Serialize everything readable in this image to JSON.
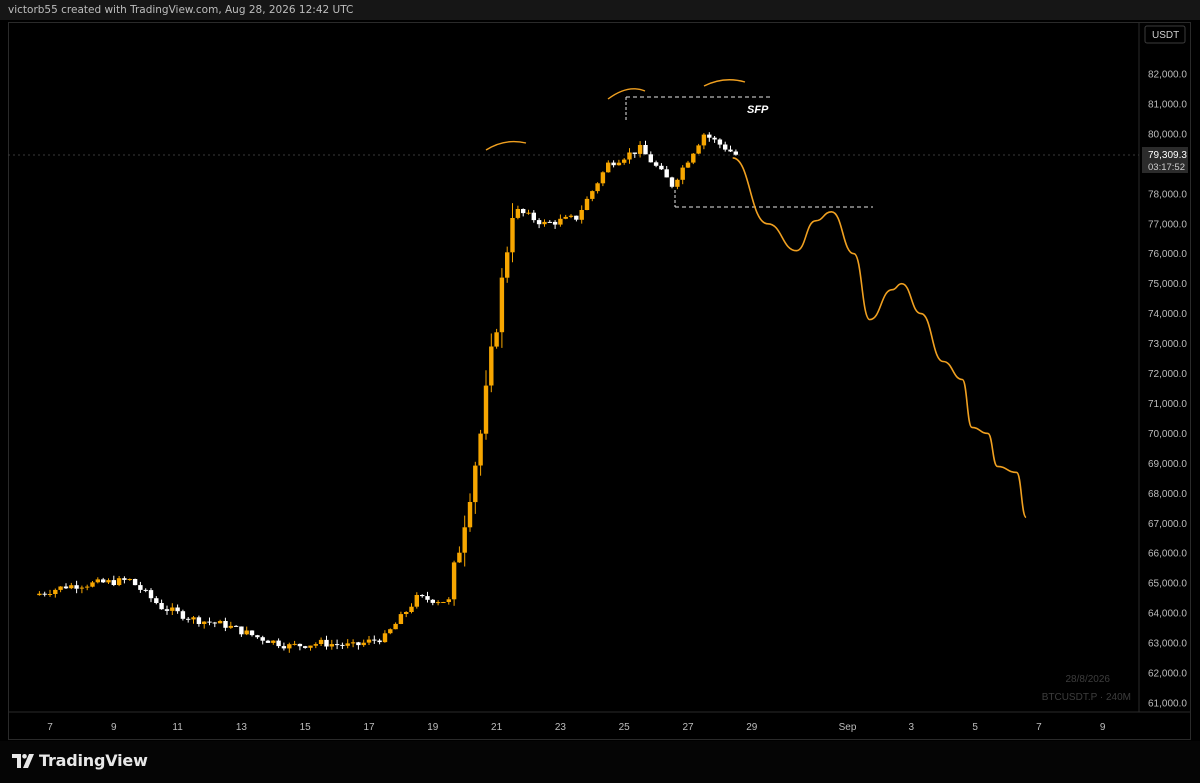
{
  "header": {
    "text": "victorb55 created with TradingView.com, Aug 28, 2026 12:42 UTC"
  },
  "price_axis": {
    "currency": "USDT",
    "labels": [
      "82,000.0",
      "81,000.0",
      "80,000.0",
      "79,000.0",
      "78,000.0",
      "77,000.0",
      "76,000.0",
      "75,000.0",
      "74,000.0",
      "73,000.0",
      "72,000.0",
      "71,000.0",
      "70,000.0",
      "69,000.0",
      "68,000.0",
      "67,000.0",
      "66,000.0",
      "65,000.0",
      "64,000.0",
      "63,000.0",
      "62,000.0",
      "61,000.0"
    ],
    "current_price": "79,309.3",
    "countdown": "03:17:52"
  },
  "time_axis": {
    "labels": [
      "7",
      "9",
      "11",
      "13",
      "15",
      "17",
      "19",
      "21",
      "23",
      "25",
      "27",
      "29",
      "Sep",
      "3",
      "5",
      "7",
      "9"
    ]
  },
  "annotations": {
    "sfp": "SFP"
  },
  "watermark": {
    "date": "28/8/2026",
    "symbol": "BTCUSDT.P · 240M"
  },
  "footer": {
    "brand": "TradingView"
  },
  "colors": {
    "up": "#f7a600",
    "down": "#ffffff",
    "projection": "#f0a020",
    "background": "#000000"
  },
  "chart_data": {
    "type": "candlestick",
    "symbol": "BTCUSDT.P",
    "interval": "240M",
    "ylim": [
      60700,
      82600
    ],
    "x_dates": [
      "Aug 6",
      "Aug 7",
      "Aug 8",
      "Aug 9",
      "Aug 10",
      "Aug 11",
      "Aug 12",
      "Aug 13",
      "Aug 14",
      "Aug 15",
      "Aug 16",
      "Aug 17",
      "Aug 18",
      "Aug 19",
      "Aug 20",
      "Aug 21",
      "Aug 22",
      "Aug 23",
      "Aug 24",
      "Aug 25",
      "Aug 26",
      "Aug 27",
      "Aug 28"
    ],
    "close_per_day_approx": [
      64600,
      64900,
      65000,
      65100,
      64200,
      63800,
      63600,
      63200,
      62900,
      63000,
      62900,
      63200,
      64500,
      64400,
      70000,
      77500,
      77000,
      77200,
      79000,
      79500,
      78300,
      80000,
      79309
    ],
    "key_levels": {
      "swing_high": 81500,
      "range_top": 81200,
      "range_low": 77600
    },
    "projection": [
      [
        28.4,
        79200
      ],
      [
        29.5,
        77000
      ],
      [
        30.4,
        76100
      ],
      [
        31.0,
        77100
      ],
      [
        31.5,
        77400
      ],
      [
        32.2,
        76000
      ],
      [
        32.7,
        73800
      ],
      [
        33.4,
        74800
      ],
      [
        33.7,
        75000
      ],
      [
        34.3,
        74000
      ],
      [
        35.0,
        72400
      ],
      [
        35.6,
        71800
      ],
      [
        35.9,
        70200
      ],
      [
        36.4,
        70000
      ],
      [
        36.7,
        68900
      ],
      [
        37.3,
        68700
      ],
      [
        37.6,
        67200
      ]
    ]
  }
}
